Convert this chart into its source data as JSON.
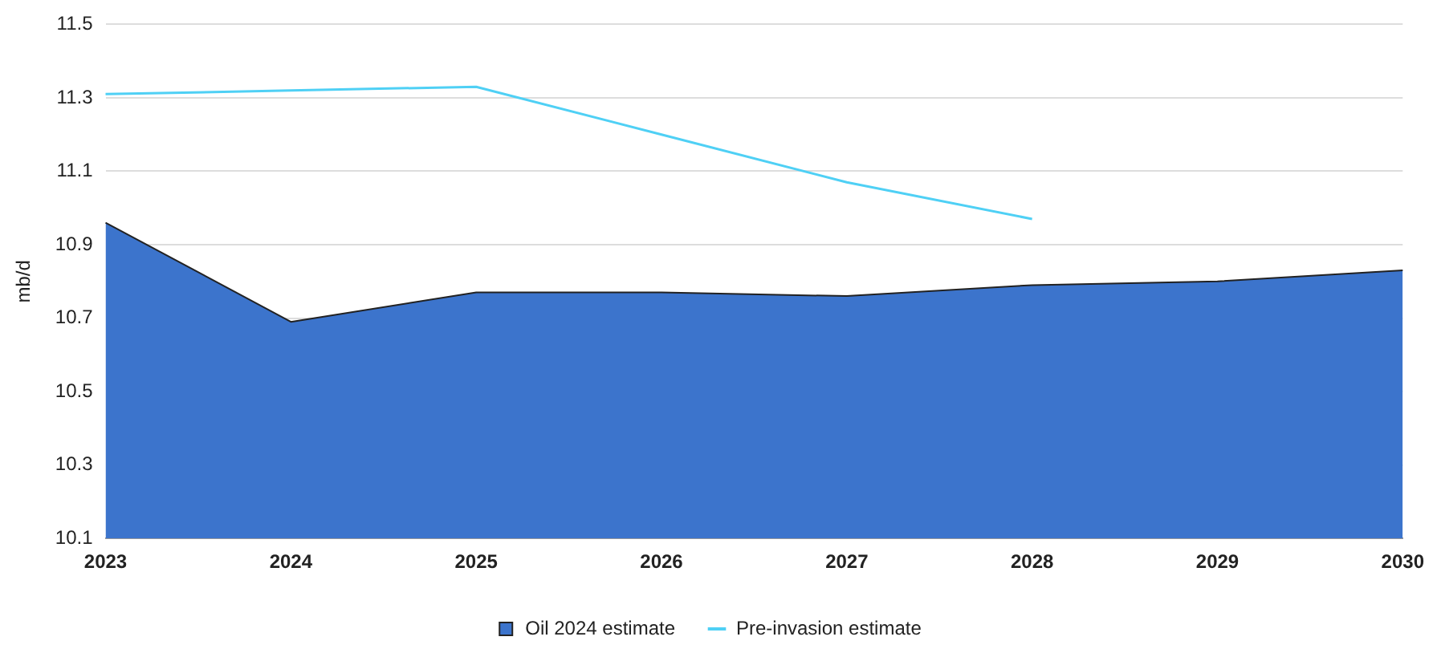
{
  "chart_data": {
    "type": "area",
    "ylabel": "mb/d",
    "categories": [
      "2023",
      "2024",
      "2025",
      "2026",
      "2027",
      "2028",
      "2029",
      "2030"
    ],
    "series": [
      {
        "name": "Oil 2024 estimate",
        "type": "area",
        "color": "#3c74cc",
        "values": [
          10.96,
          10.69,
          10.77,
          10.77,
          10.76,
          10.79,
          10.8,
          10.83
        ]
      },
      {
        "name": "Pre-invasion estimate",
        "type": "line",
        "color": "#4fd0f5",
        "values": [
          11.31,
          11.32,
          11.33,
          11.2,
          11.07,
          10.97,
          null,
          null
        ]
      }
    ],
    "ylim": [
      10.1,
      11.5
    ],
    "yticks": [
      10.1,
      10.3,
      10.5,
      10.7,
      10.9,
      11.1,
      11.3,
      11.5
    ],
    "grid": "y",
    "legend": "bottom",
    "marker": "none"
  }
}
